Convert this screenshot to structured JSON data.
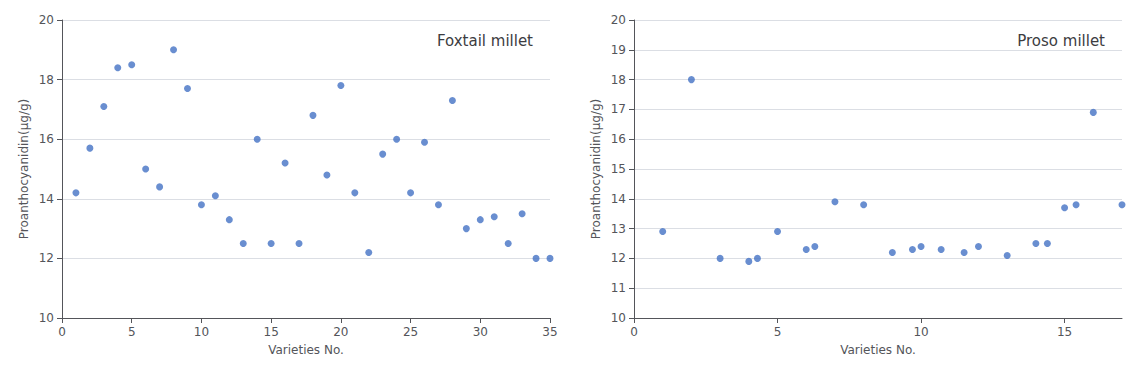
{
  "chart_data": [
    {
      "type": "scatter",
      "title": "Foxtail millet",
      "xlabel": "Varieties No.",
      "ylabel": "Proanthocyanidin(μg/g)",
      "xlim": [
        0,
        35
      ],
      "ylim": [
        10,
        20
      ],
      "xticks": [
        0,
        5,
        10,
        15,
        20,
        25,
        30,
        35
      ],
      "yticks": [
        10,
        12,
        14,
        16,
        18,
        20
      ],
      "x": [
        1,
        2,
        3,
        4,
        5,
        6,
        7,
        8,
        9,
        10,
        11,
        12,
        13,
        14,
        15,
        16,
        17,
        18,
        19,
        20,
        21,
        22,
        23,
        24,
        25,
        26,
        27,
        28,
        29,
        30,
        31,
        32,
        33,
        34,
        35
      ],
      "values": [
        14.2,
        15.7,
        17.1,
        18.4,
        18.5,
        15.0,
        14.4,
        19.0,
        17.7,
        13.8,
        14.1,
        13.3,
        12.5,
        16.0,
        12.5,
        15.2,
        12.5,
        16.8,
        14.8,
        17.8,
        14.2,
        12.2,
        15.5,
        16.0,
        14.2,
        15.9,
        13.8,
        17.3,
        13.0,
        13.3,
        13.4,
        12.5,
        13.5,
        12.0,
        12.0
      ],
      "color": "#4472C4",
      "grid": true
    },
    {
      "type": "scatter",
      "title": "Proso millet",
      "xlabel": "Varieties No.",
      "ylabel": "Proanthocyanidin(μg/g)",
      "xlim": [
        0,
        17
      ],
      "ylim": [
        10,
        20
      ],
      "xticks": [
        0,
        5,
        10,
        15
      ],
      "yticks": [
        10,
        11,
        12,
        13,
        14,
        15,
        16,
        17,
        18,
        19,
        20
      ],
      "x": [
        1,
        2,
        3,
        4,
        4.3,
        5,
        6,
        6.3,
        7,
        8,
        9,
        9.7,
        10,
        10.7,
        11.5,
        12,
        13,
        14,
        14.4,
        15,
        15.4,
        16,
        17
      ],
      "values": [
        12.9,
        18.0,
        12.0,
        11.9,
        12.0,
        12.9,
        12.3,
        12.4,
        13.9,
        13.8,
        12.2,
        12.3,
        12.4,
        12.3,
        12.2,
        12.4,
        12.1,
        12.5,
        12.5,
        13.7,
        13.8,
        16.9,
        13.8
      ],
      "color": "#4472C4",
      "grid": true
    }
  ]
}
